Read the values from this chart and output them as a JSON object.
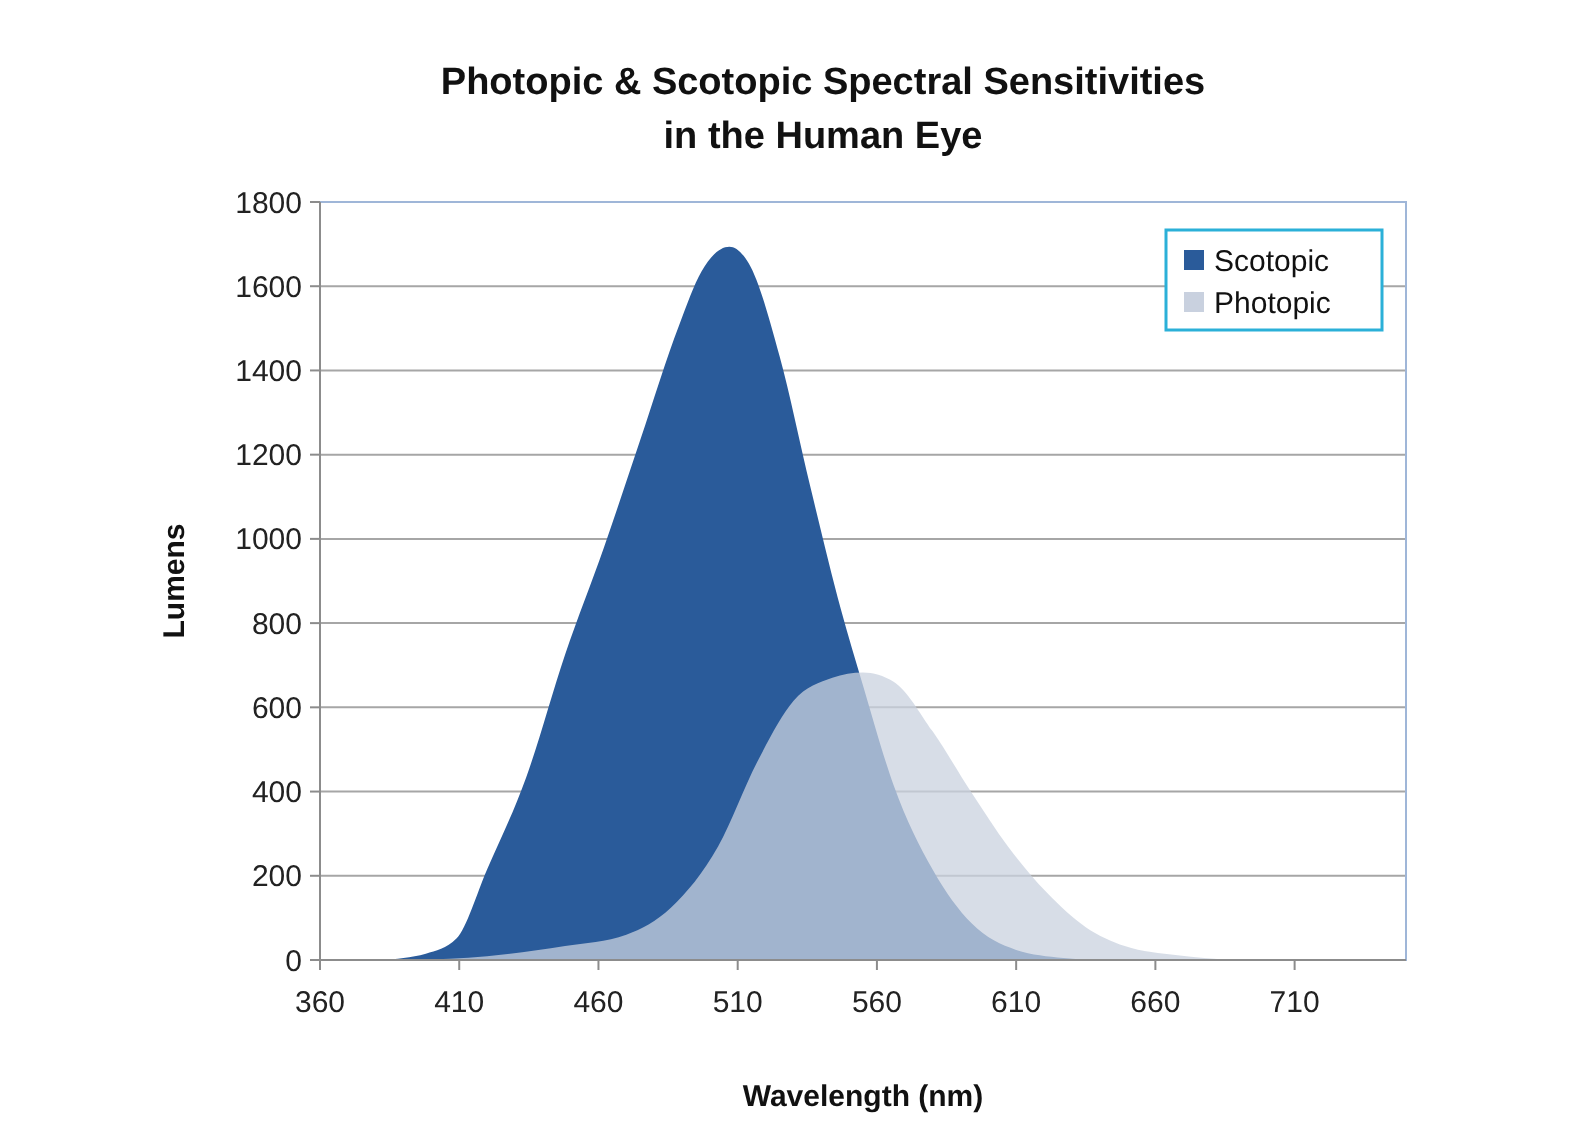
{
  "chart_data": {
    "type": "area",
    "title": "Photopic & Scotopic Spectral Sensitivities\nin the Human Eye",
    "xlabel": "Wavelength (nm)",
    "ylabel": "Lumens",
    "xlim": [
      360,
      750
    ],
    "xticks": [
      360,
      410,
      460,
      510,
      560,
      610,
      660,
      710
    ],
    "ylim": [
      0,
      1800
    ],
    "yticks": [
      0,
      200,
      400,
      600,
      800,
      1000,
      1200,
      1400,
      1600,
      1800
    ],
    "grid": "y",
    "legend": "top right",
    "series": [
      {
        "name": "Scotopic",
        "color": "#2a5b9a",
        "x": [
          382,
          398,
          409,
          420,
          434,
          448,
          462,
          475,
          489,
          497,
          507,
          514,
          525,
          536,
          547,
          555,
          566,
          580,
          594,
          610,
          627,
          640
        ],
        "values": [
          0,
          15,
          51,
          215,
          433,
          725,
          980,
          1235,
          1508,
          1635,
          1694,
          1654,
          1435,
          1126,
          834,
          652,
          415,
          215,
          87,
          24,
          5,
          0
        ]
      },
      {
        "name": "Photopic",
        "color": "#c9d1df",
        "x": [
          393,
          420,
          448,
          470,
          486,
          503,
          517,
          530,
          544,
          555,
          566,
          580,
          594,
          607,
          621,
          635,
          649,
          668,
          687
        ],
        "values": [
          0,
          9,
          33,
          60,
          124,
          270,
          470,
          615,
          670,
          683,
          661,
          543,
          397,
          270,
          160,
          78,
          33,
          11,
          0
        ]
      }
    ]
  }
}
